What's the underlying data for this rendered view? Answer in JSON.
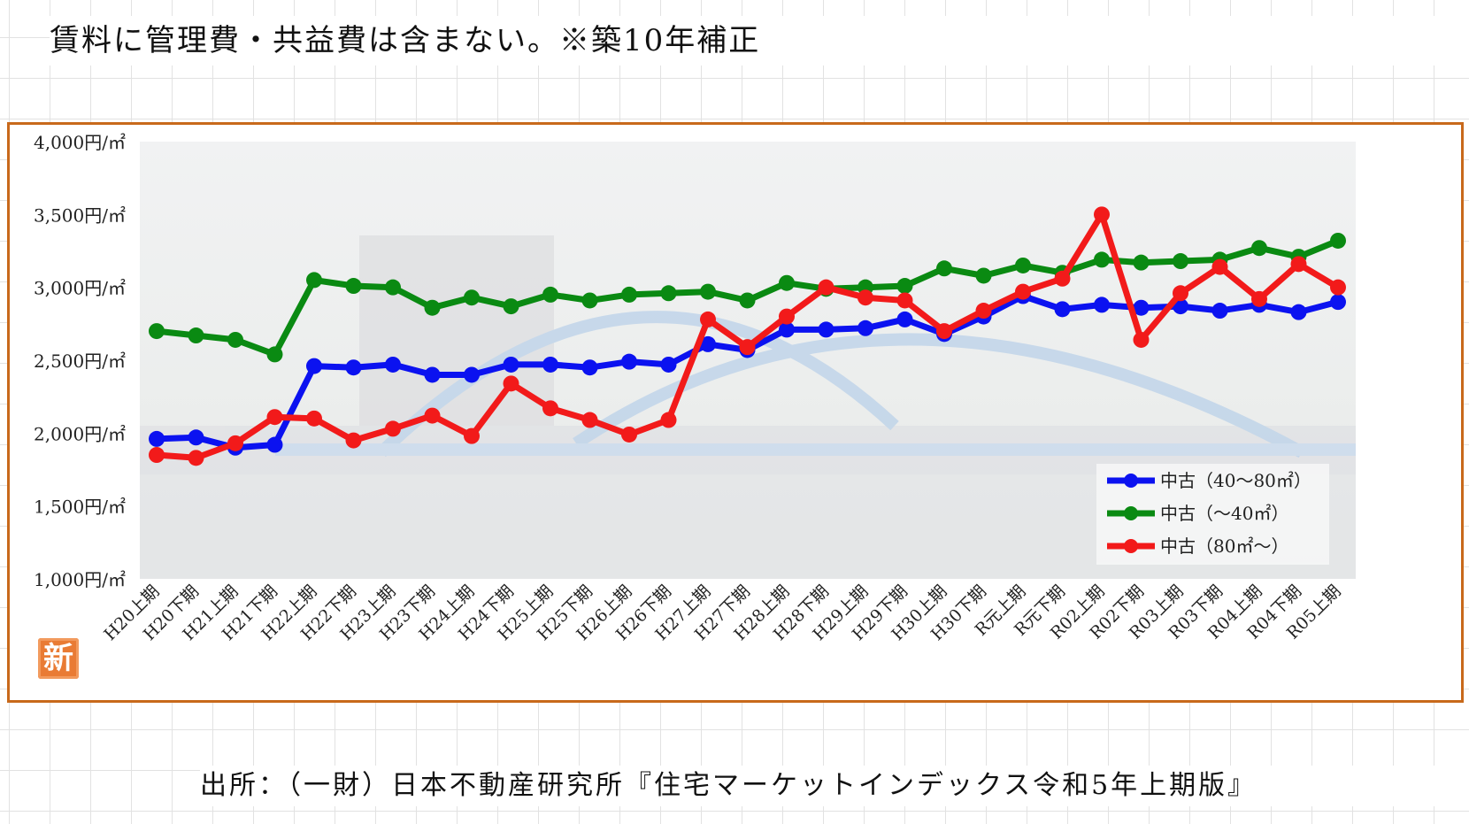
{
  "header": {
    "note": "賃料に管理費・共益費は含まない。※築10年補正"
  },
  "source": {
    "text": "出所：（一財）日本不動産研究所『住宅マーケットインデックス令和5年上期版』"
  },
  "badge": {
    "label": "新"
  },
  "colors": {
    "frame": "#c8691b",
    "series_blue": "#0b12f0",
    "series_green": "#0a8a12",
    "series_red": "#f21a1a",
    "badge": "#e97b34"
  },
  "chart_data": {
    "type": "line",
    "title": "",
    "xlabel": "",
    "ylabel": "",
    "ylim": [
      1000,
      4000
    ],
    "y_ticks": [
      "1,000円/㎡",
      "1,500円/㎡",
      "2,000円/㎡",
      "2,500円/㎡",
      "3,000円/㎡",
      "3,500円/㎡",
      "4,000円/㎡"
    ],
    "y_tick_values": [
      1000,
      1500,
      2000,
      2500,
      3000,
      3500,
      4000
    ],
    "grid": false,
    "legend_position": "bottom-right",
    "categories": [
      "H20上期",
      "H20下期",
      "H21上期",
      "H21下期",
      "H22上期",
      "H22下期",
      "H23上期",
      "H23下期",
      "H24上期",
      "H24下期",
      "H25上期",
      "H25下期",
      "H26上期",
      "H26下期",
      "H27上期",
      "H27下期",
      "H28上期",
      "H28下期",
      "H29上期",
      "H29下期",
      "H30上期",
      "H30下期",
      "R元上期",
      "R元下期",
      "R02上期",
      "R02下期",
      "R03上期",
      "R03下期",
      "R04上期",
      "R04下期",
      "R05上期"
    ],
    "series": [
      {
        "name": "中古（40～80㎡）",
        "color": "#0b12f0",
        "values": [
          1960,
          1970,
          1900,
          1920,
          2460,
          2450,
          2470,
          2400,
          2400,
          2470,
          2470,
          2450,
          2490,
          2470,
          2610,
          2570,
          2710,
          2710,
          2720,
          2780,
          2680,
          2800,
          2940,
          2850,
          2880,
          2860,
          2870,
          2840,
          2880,
          2830,
          2900
        ]
      },
      {
        "name": "中古（～40㎡）",
        "color": "#0a8a12",
        "values": [
          2700,
          2670,
          2640,
          2540,
          3050,
          3010,
          3000,
          2860,
          2930,
          2870,
          2950,
          2910,
          2950,
          2960,
          2970,
          2910,
          3030,
          2990,
          3000,
          3010,
          3130,
          3080,
          3150,
          3100,
          3190,
          3170,
          3180,
          3190,
          3270,
          3210,
          3320
        ]
      },
      {
        "name": "中古（80㎡～）",
        "color": "#f21a1a",
        "values": [
          1850,
          1830,
          1930,
          2110,
          2100,
          1950,
          2030,
          2120,
          1980,
          2340,
          2170,
          2090,
          1990,
          2090,
          2780,
          2590,
          2800,
          3000,
          2930,
          2910,
          2700,
          2840,
          2970,
          3060,
          3500,
          2640,
          2960,
          3140,
          2920,
          3160,
          3000
        ]
      }
    ]
  }
}
